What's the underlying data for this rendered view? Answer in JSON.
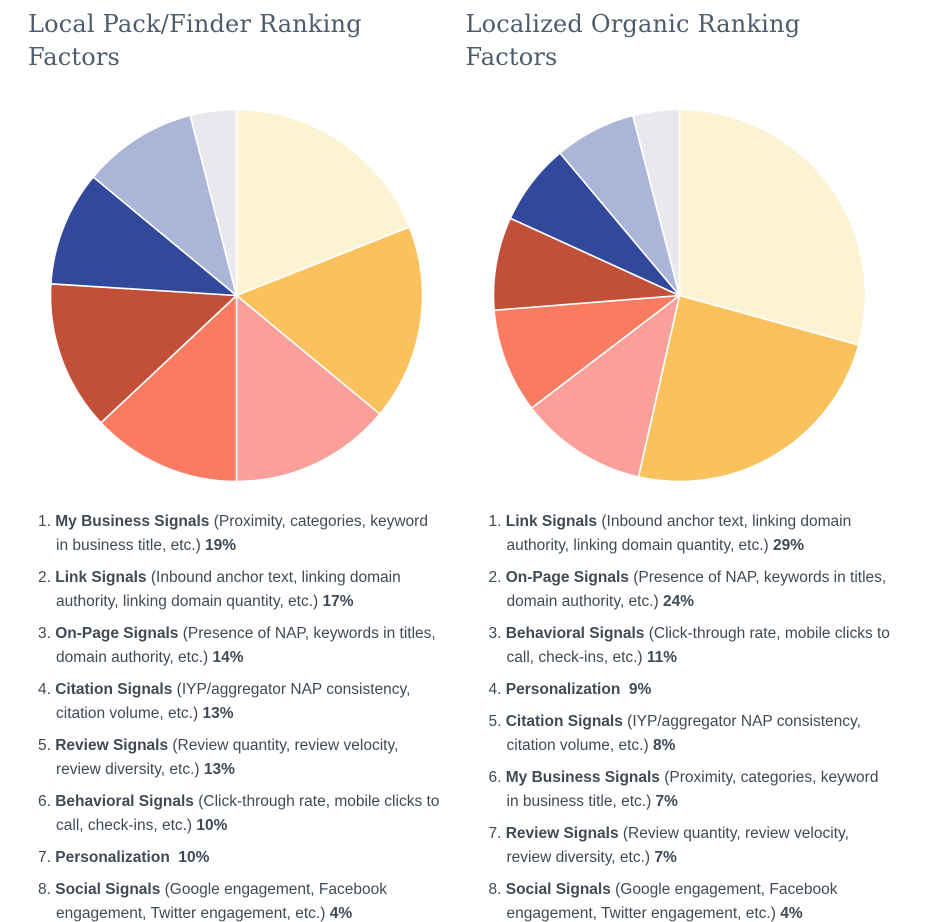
{
  "page": {
    "background": "#ffffff",
    "title_color": "#4d5c6c",
    "text_color": "#404a54",
    "slice_separator_color": "#ffffff"
  },
  "charts": [
    {
      "title": "Local Pack/Finder Ranking Factors",
      "items": [
        {
          "name": "My Business Signals",
          "desc": "(Proximity, categories, keyword in business title, etc.)",
          "pct": "19%",
          "value": 19,
          "color": "#FCF3D2"
        },
        {
          "name": "Link Signals",
          "desc": "(Inbound anchor text, linking domain authority, linking domain quantity, etc.)",
          "pct": "17%",
          "value": 17,
          "color": "#FAC15D"
        },
        {
          "name": "On-Page Signals",
          "desc": "(Presence of NAP, keywords in titles, domain authority, etc.)",
          "pct": "14%",
          "value": 14,
          "color": "#FB9F9A"
        },
        {
          "name": "Citation Signals",
          "desc": "(IYP/aggregator NAP consistency, citation volume, etc.)",
          "pct": "13%",
          "value": 13,
          "color": "#F97C62"
        },
        {
          "name": "Review Signals",
          "desc": "(Review quantity, review velocity, review diversity, etc.)",
          "pct": "13%",
          "value": 13,
          "color": "#C24F38"
        },
        {
          "name": "Behavioral Signals",
          "desc": "(Click-through rate, mobile clicks to call, check-ins, etc.)",
          "pct": "10%",
          "value": 10,
          "color": "#32499B"
        },
        {
          "name": "Personalization",
          "desc": "",
          "pct": "10%",
          "value": 10,
          "color": "#AAB5D8"
        },
        {
          "name": "Social Signals",
          "desc": "(Google engagement, Facebook engagement, Twitter engagement, etc.)",
          "pct": "4%",
          "value": 4,
          "color": "#E9E9ED"
        }
      ]
    },
    {
      "title": "Localized Organic Ranking Factors",
      "items": [
        {
          "name": "Link Signals",
          "desc": "(Inbound anchor text, linking domain authority, linking domain quantity, etc.)",
          "pct": "29%",
          "value": 29,
          "color": "#FCF3D2"
        },
        {
          "name": "On-Page Signals",
          "desc": "(Presence of NAP, keywords in titles, domain authority, etc.)",
          "pct": "24%",
          "value": 24,
          "color": "#FAC15D"
        },
        {
          "name": "Behavioral Signals",
          "desc": "(Click-through rate, mobile clicks to call, check-ins, etc.)",
          "pct": "11%",
          "value": 11,
          "color": "#FB9F9A"
        },
        {
          "name": "Personalization",
          "desc": "",
          "pct": "9%",
          "value": 9,
          "color": "#F97C62"
        },
        {
          "name": "Citation Signals",
          "desc": "(IYP/aggregator NAP consistency, citation volume, etc.)",
          "pct": "8%",
          "value": 8,
          "color": "#C24F38"
        },
        {
          "name": "My Business Signals",
          "desc": "(Proximity, categories, keyword in business title, etc.)",
          "pct": "7%",
          "value": 7,
          "color": "#32499B"
        },
        {
          "name": "Review Signals",
          "desc": "(Review quantity, review velocity, review diversity, etc.)",
          "pct": "7%",
          "value": 7,
          "color": "#AAB5D8"
        },
        {
          "name": "Social Signals",
          "desc": "(Google engagement, Facebook engagement, Twitter engagement, etc.)",
          "pct": "4%",
          "value": 4,
          "color": "#E9E9ED"
        }
      ]
    }
  ],
  "chart_data": [
    {
      "type": "pie",
      "title": "Local Pack/Finder Ranking Factors",
      "labels": [
        "My Business Signals",
        "Link Signals",
        "On-Page Signals",
        "Citation Signals",
        "Review Signals",
        "Behavioral Signals",
        "Personalization",
        "Social Signals"
      ],
      "values": [
        19,
        17,
        14,
        13,
        13,
        10,
        10,
        4
      ],
      "unit": "%",
      "colors": [
        "#FCF3D2",
        "#FAC15D",
        "#FB9F9A",
        "#F97C62",
        "#C24F38",
        "#32499B",
        "#AAB5D8",
        "#E9E9ED"
      ],
      "start_angle": "12 o'clock",
      "direction": "clockwise",
      "legend_position": "below, numbered list"
    },
    {
      "type": "pie",
      "title": "Localized Organic Ranking Factors",
      "labels": [
        "Link Signals",
        "On-Page Signals",
        "Behavioral Signals",
        "Personalization",
        "Citation Signals",
        "My Business Signals",
        "Review Signals",
        "Social Signals"
      ],
      "values": [
        29,
        24,
        11,
        9,
        8,
        7,
        7,
        4
      ],
      "unit": "%",
      "colors": [
        "#FCF3D2",
        "#FAC15D",
        "#FB9F9A",
        "#F97C62",
        "#C24F38",
        "#32499B",
        "#AAB5D8",
        "#E9E9ED"
      ],
      "start_angle": "12 o'clock",
      "direction": "clockwise",
      "legend_position": "below, numbered list"
    }
  ]
}
